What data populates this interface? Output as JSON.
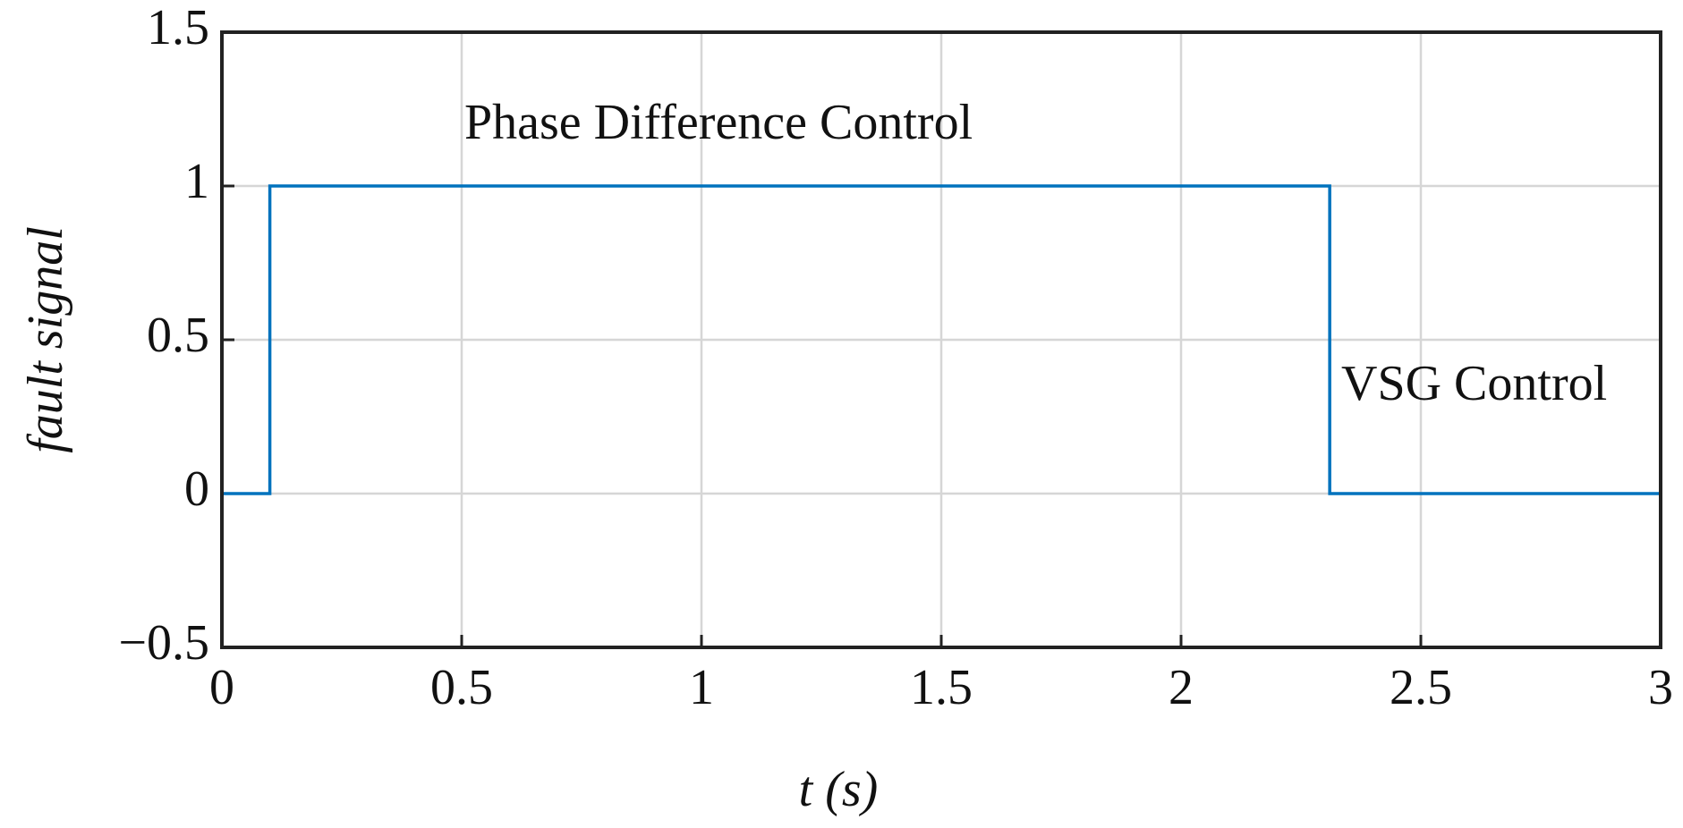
{
  "chart_data": {
    "type": "line",
    "xlabel": "t (s)",
    "ylabel": "fault signal",
    "x": [
      0,
      0.1,
      0.1,
      2.31,
      2.31,
      3
    ],
    "values": [
      0,
      0,
      1,
      1,
      0,
      0
    ],
    "color": "#0072bd",
    "xlim": [
      0,
      3
    ],
    "ylim": [
      -0.5,
      1.5
    ],
    "xticks": [
      0,
      0.5,
      1,
      1.5,
      2,
      2.5,
      3
    ],
    "yticks": [
      {
        "value": -0.5,
        "label": "−0.5"
      },
      0,
      0.5,
      1,
      1.5
    ],
    "grid": true,
    "annotations": [
      "Phase Difference Control",
      "VSG Control"
    ]
  }
}
